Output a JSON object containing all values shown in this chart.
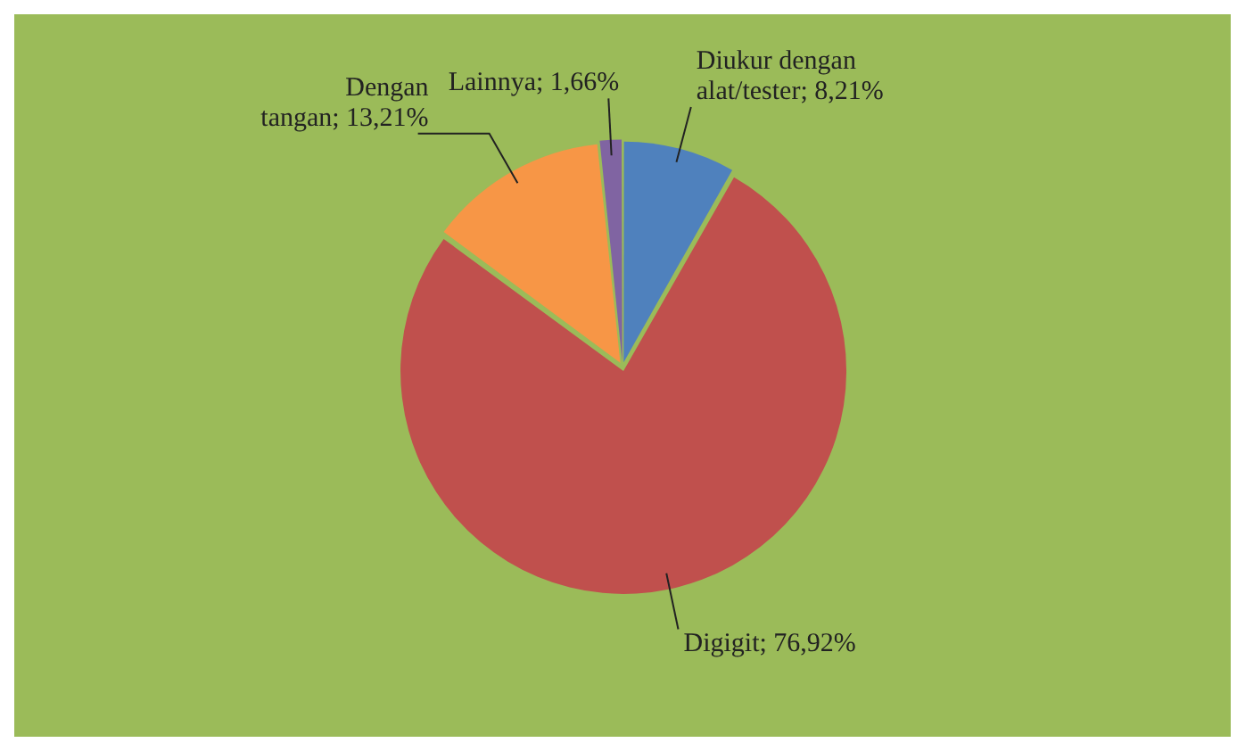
{
  "chart_data": {
    "type": "pie",
    "categories": [
      "Diukur dengan alat/tester",
      "Digigit",
      "Dengan tangan",
      "Lainnya"
    ],
    "values": [
      8.21,
      76.92,
      13.21,
      1.66
    ],
    "value_labels": [
      "8,21%",
      "76,92%",
      "13,21%",
      "1,66%"
    ],
    "colors": [
      "#4f81bd",
      "#c0504d",
      "#f79646",
      "#8064a2"
    ]
  }
}
